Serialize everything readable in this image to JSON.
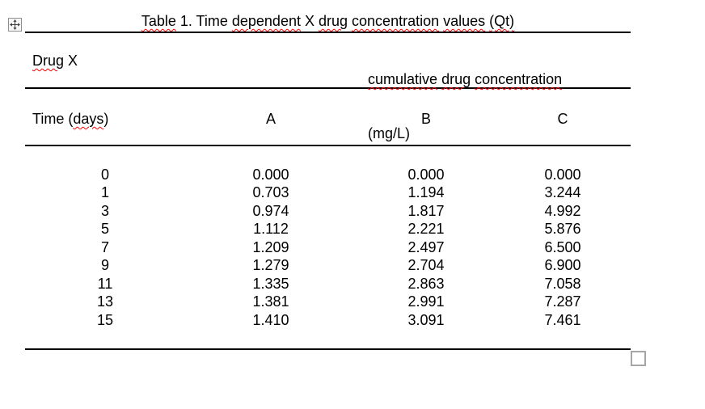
{
  "colors": {
    "text": "#000000",
    "table_rule": "#000000",
    "spellcheck_squiggle": "#ff0000",
    "handle_border": "#a6a6a6"
  },
  "caption": {
    "full_text": "Table 1. Time dependent X drug concentration values (Qt)",
    "segments": [
      {
        "text": "Table",
        "misspelled": true
      },
      {
        "text": " 1. Time ",
        "misspelled": false
      },
      {
        "text": "dependent",
        "misspelled": true
      },
      {
        "text": " X ",
        "misspelled": false
      },
      {
        "text": "drug",
        "misspelled": true
      },
      {
        "text": " ",
        "misspelled": false
      },
      {
        "text": "concentration",
        "misspelled": true
      },
      {
        "text": " ",
        "misspelled": false
      },
      {
        "text": "values",
        "misspelled": true
      },
      {
        "text": " ",
        "misspelled": false
      },
      {
        "text": "(Qt)",
        "misspelled": true
      }
    ]
  },
  "table": {
    "group_header": {
      "drug_full_text": "Drug X",
      "drug_segments": [
        {
          "text": "Drug",
          "misspelled": true
        },
        {
          "text": " X",
          "misspelled": false
        }
      ],
      "cumulative_full_text": "cumulative drug concentration (mg/L)",
      "cumulative_line1_segments": [
        {
          "text": "cumulative",
          "misspelled": true
        },
        {
          "text": " ",
          "misspelled": false
        },
        {
          "text": "drug",
          "misspelled": true
        },
        {
          "text": " ",
          "misspelled": false
        },
        {
          "text": "concentration",
          "misspelled": true
        }
      ],
      "cumulative_line2": "(mg/L)"
    },
    "column_headers": {
      "time_full_text": "Time (days)",
      "time_segments": [
        {
          "text": "Time (",
          "misspelled": false
        },
        {
          "text": "days",
          "misspelled": true
        },
        {
          "text": ")",
          "misspelled": false
        }
      ],
      "a": "A",
      "b": "B",
      "c": "C"
    },
    "rows": {
      "time": [
        "0",
        "1",
        "3",
        "5",
        "7",
        "9",
        "11",
        "13",
        "15"
      ],
      "a": [
        "0.000",
        "0.703",
        "0.974",
        "1.112",
        "1.209",
        "1.279",
        "1.335",
        "1.381",
        "1.410"
      ],
      "b": [
        "0.000",
        "1.194",
        "1.817",
        "2.221",
        "2.497",
        "2.704",
        "2.863",
        "2.991",
        "3.091"
      ],
      "c": [
        "0.000",
        "3.244",
        "4.992",
        "5.876",
        "6.500",
        "6.900",
        "7.058",
        "7.287",
        "7.461"
      ]
    }
  }
}
